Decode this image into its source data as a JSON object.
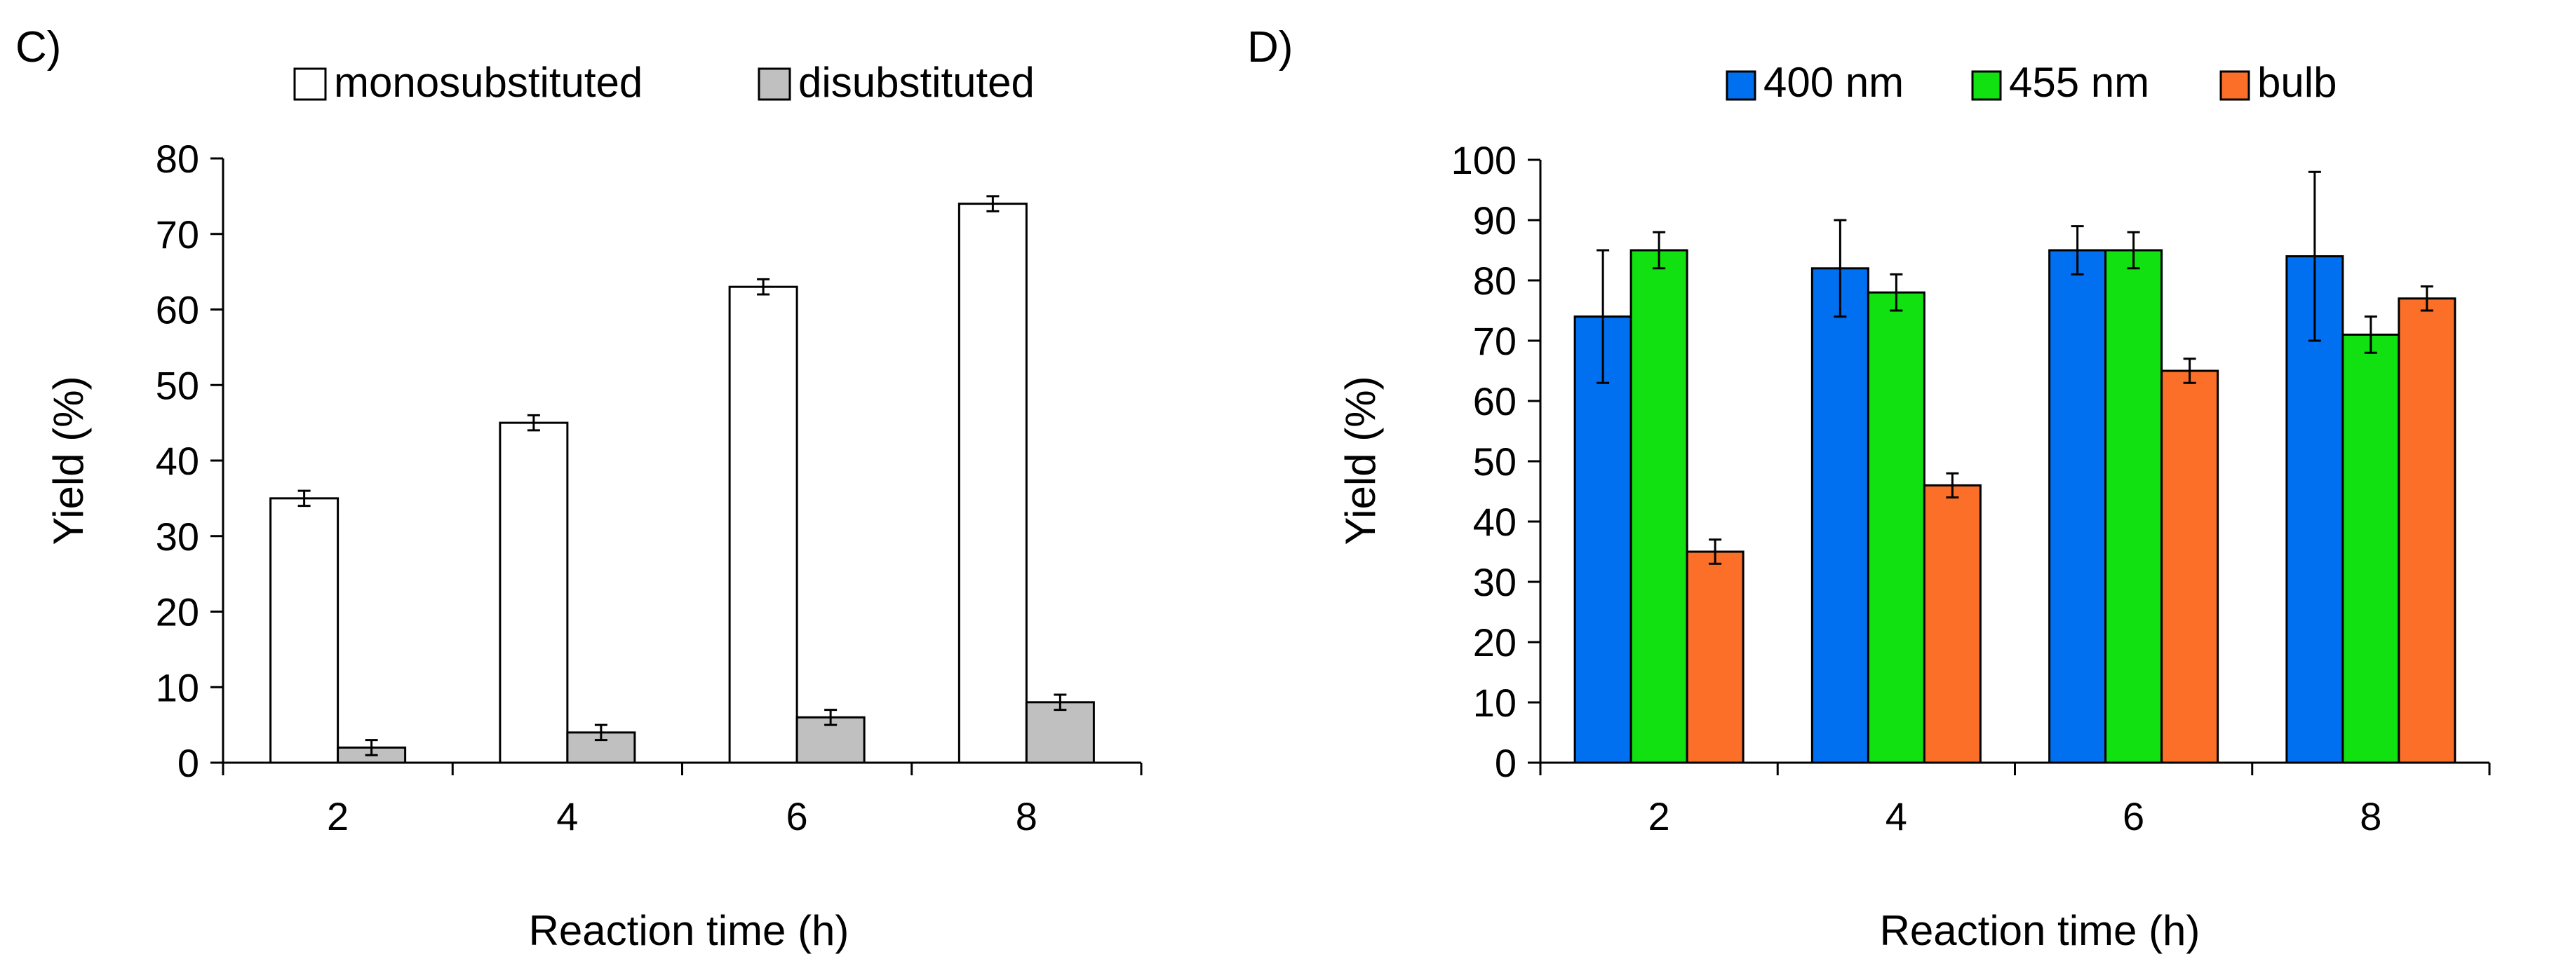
{
  "chart_data": [
    {
      "type": "bar",
      "panel_label": "C)",
      "title": "",
      "xlabel": "Reaction time (h)",
      "ylabel": "Yield (%)",
      "ylim": [
        0,
        80
      ],
      "yticks": [
        0,
        10,
        20,
        30,
        40,
        50,
        60,
        70,
        80
      ],
      "categories": [
        "2",
        "4",
        "6",
        "8"
      ],
      "legend_position": "top",
      "grid": false,
      "series": [
        {
          "name": "monosubstituted",
          "color": "#ffffff",
          "values": [
            35,
            45,
            63,
            74
          ],
          "errors": [
            1,
            1,
            1,
            1
          ]
        },
        {
          "name": "disubstituted",
          "color": "#c0c0c0",
          "values": [
            2,
            4,
            6,
            8
          ],
          "errors": [
            1,
            1,
            1,
            1
          ]
        }
      ]
    },
    {
      "type": "bar",
      "panel_label": "D)",
      "title": "",
      "xlabel": "Reaction time (h)",
      "ylabel": "Yield (%)",
      "ylim": [
        0,
        100
      ],
      "yticks": [
        0,
        10,
        20,
        30,
        40,
        50,
        60,
        70,
        80,
        90,
        100
      ],
      "categories": [
        "2",
        "4",
        "6",
        "8"
      ],
      "legend_position": "top",
      "grid": false,
      "series": [
        {
          "name": "400 nm",
          "color": "#0070f0",
          "values": [
            74,
            82,
            85,
            84
          ],
          "errors": [
            11,
            8,
            4,
            14
          ]
        },
        {
          "name": "455 nm",
          "color": "#11e011",
          "values": [
            85,
            78,
            85,
            71
          ],
          "errors": [
            3,
            3,
            3,
            3
          ]
        },
        {
          "name": "bulb",
          "color": "#fb6f28",
          "values": [
            35,
            46,
            65,
            77
          ],
          "errors": [
            2,
            2,
            2,
            2
          ]
        }
      ]
    }
  ]
}
